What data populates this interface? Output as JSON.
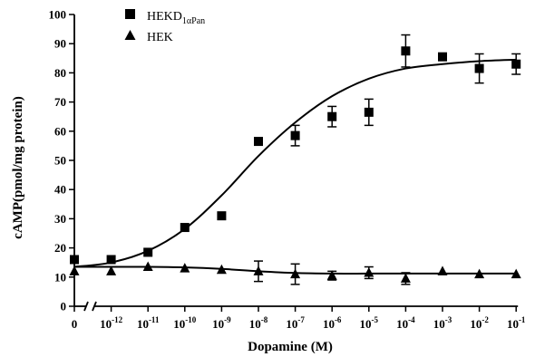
{
  "chart_data": {
    "type": "scatter",
    "title": "",
    "xlabel": "Dopamine (M)",
    "ylabel": "cAMP(pmol/mg protein)",
    "ylim": [
      0,
      100
    ],
    "y_ticks": [
      0,
      10,
      20,
      30,
      40,
      50,
      60,
      70,
      80,
      90,
      100
    ],
    "x_scale": "log",
    "x_ticks": [
      {
        "label": "0",
        "base": "0",
        "exp": ""
      },
      {
        "label": "10^-12",
        "base": "10",
        "exp": "-12"
      },
      {
        "label": "10^-11",
        "base": "10",
        "exp": "-11"
      },
      {
        "label": "10^-10",
        "base": "10",
        "exp": "-10"
      },
      {
        "label": "10^-9",
        "base": "10",
        "exp": "-9"
      },
      {
        "label": "10^-8",
        "base": "10",
        "exp": "-8"
      },
      {
        "label": "10^-7",
        "base": "10",
        "exp": "-7"
      },
      {
        "label": "10^-6",
        "base": "10",
        "exp": "-6"
      },
      {
        "label": "10^-5",
        "base": "10",
        "exp": "-5"
      },
      {
        "label": "10^-4",
        "base": "10",
        "exp": "-4"
      },
      {
        "label": "10^-3",
        "base": "10",
        "exp": "-3"
      },
      {
        "label": "10^-2",
        "base": "10",
        "exp": "-2"
      },
      {
        "label": "10^-1",
        "base": "10",
        "exp": "-1"
      }
    ],
    "legend_position": "top-left",
    "series": [
      {
        "name": "HEKD1αPan",
        "name_main": "HEKD",
        "name_sub": "1αPan",
        "marker": "square",
        "color": "#000000",
        "points": [
          {
            "x": "0",
            "y": 16,
            "err": 0
          },
          {
            "x": "10^-12",
            "y": 16,
            "err": 0
          },
          {
            "x": "10^-11",
            "y": 18.5,
            "err": 0
          },
          {
            "x": "10^-10",
            "y": 27,
            "err": 0
          },
          {
            "x": "10^-9",
            "y": 31,
            "err": 0
          },
          {
            "x": "10^-8",
            "y": 56.5,
            "err": 0
          },
          {
            "x": "10^-7",
            "y": 58.5,
            "err": 3.5
          },
          {
            "x": "10^-6",
            "y": 65,
            "err": 3.5
          },
          {
            "x": "10^-5",
            "y": 66.5,
            "err": 4.5
          },
          {
            "x": "10^-4",
            "y": 87.5,
            "err": 5.5
          },
          {
            "x": "10^-3",
            "y": 85.5,
            "err": 0
          },
          {
            "x": "10^-2",
            "y": 81.5,
            "err": 5
          },
          {
            "x": "10^-1",
            "y": 83,
            "err": 3.5
          }
        ]
      },
      {
        "name": "HEK",
        "name_main": "HEK",
        "name_sub": "",
        "marker": "triangle",
        "color": "#000000",
        "points": [
          {
            "x": "0",
            "y": 12,
            "err": 0
          },
          {
            "x": "10^-12",
            "y": 12,
            "err": 0
          },
          {
            "x": "10^-11",
            "y": 13.5,
            "err": 0
          },
          {
            "x": "10^-10",
            "y": 13,
            "err": 0
          },
          {
            "x": "10^-9",
            "y": 12.5,
            "err": 0
          },
          {
            "x": "10^-8",
            "y": 12,
            "err": 3.5
          },
          {
            "x": "10^-7",
            "y": 11,
            "err": 3.5
          },
          {
            "x": "10^-6",
            "y": 10.5,
            "err": 1.5
          },
          {
            "x": "10^-5",
            "y": 11.5,
            "err": 2
          },
          {
            "x": "10^-4",
            "y": 9.5,
            "err": 2
          },
          {
            "x": "10^-3",
            "y": 12,
            "err": 0
          },
          {
            "x": "10^-2",
            "y": 11,
            "err": 0
          },
          {
            "x": "10^-1",
            "y": 11,
            "err": 0
          }
        ]
      }
    ],
    "fit_curves": [
      {
        "series": "HEKD1αPan",
        "x": [
          "0",
          "10^-12",
          "10^-11",
          "10^-10",
          "10^-9",
          "10^-8",
          "10^-7",
          "10^-6",
          "10^-5",
          "10^-4",
          "10^-3",
          "10^-2",
          "10^-1"
        ],
        "y": [
          13.5,
          15,
          19,
          26.5,
          38,
          51.5,
          63,
          72,
          78,
          81.5,
          83,
          84,
          84.5
        ]
      },
      {
        "series": "HEK",
        "x": [
          "0",
          "10^-12",
          "10^-11",
          "10^-10",
          "10^-9",
          "10^-8",
          "10^-7",
          "10^-6",
          "10^-5",
          "10^-4",
          "10^-3",
          "10^-2",
          "10^-1"
        ],
        "y": [
          13.5,
          13.5,
          13.5,
          13.3,
          12.8,
          12,
          11.4,
          11.2,
          11.2,
          11.2,
          11.2,
          11.2,
          11.2
        ]
      }
    ]
  }
}
